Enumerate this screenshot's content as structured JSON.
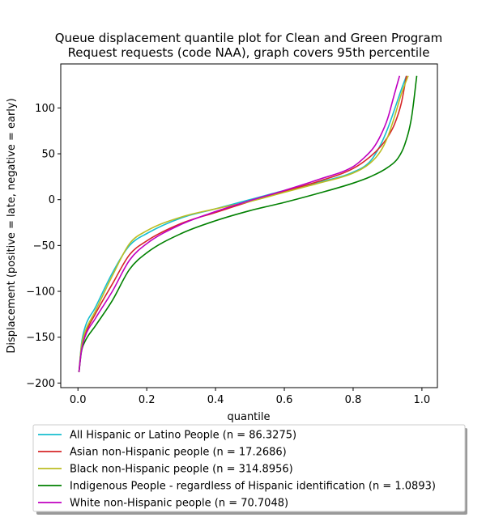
{
  "chart_data": {
    "type": "line",
    "title_lines": [
      "Queue displacement quantile plot for Clean and Green Program",
      "Request  requests (code NAA), graph covers 95th percentile"
    ],
    "xlabel": "quantile",
    "ylabel": "Displacement (positive = late, negative = early)",
    "xlim": [
      -0.05,
      1.045
    ],
    "ylim": [
      -205,
      148
    ],
    "xticks": [
      0.0,
      0.2,
      0.4,
      0.6,
      0.8,
      1.0
    ],
    "xtick_labels": [
      "0.0",
      "0.2",
      "0.4",
      "0.6",
      "0.8",
      "1.0"
    ],
    "yticks": [
      -200,
      -150,
      -100,
      -50,
      0,
      50,
      100
    ],
    "ytick_labels": [
      "−200",
      "−150",
      "−100",
      "−50",
      "0",
      "50",
      "100"
    ],
    "grid": false,
    "legend_position": "below",
    "series": [
      {
        "name": "All Hispanic or Latino People (n = 86.3275)",
        "color": "#17becf",
        "x": [
          0.003,
          0.01,
          0.02,
          0.05,
          0.1,
          0.15,
          0.2,
          0.3,
          0.4,
          0.5,
          0.6,
          0.7,
          0.8,
          0.85,
          0.88,
          0.9,
          0.92,
          0.94,
          0.955
        ],
        "y": [
          -188,
          -158,
          -140,
          -118,
          -80,
          -50,
          -37,
          -20,
          -10,
          0,
          10,
          19,
          30,
          42,
          60,
          77,
          98,
          120,
          135
        ]
      },
      {
        "name": "Asian non-Hispanic people (n = 17.2686)",
        "color": "#d62728",
        "x": [
          0.003,
          0.01,
          0.02,
          0.05,
          0.1,
          0.15,
          0.2,
          0.3,
          0.4,
          0.5,
          0.6,
          0.7,
          0.8,
          0.85,
          0.88,
          0.9,
          0.92,
          0.94,
          0.955
        ],
        "y": [
          -188,
          -163,
          -148,
          -125,
          -92,
          -60,
          -45,
          -26,
          -14,
          -2,
          9,
          20,
          34,
          47,
          58,
          68,
          82,
          105,
          135
        ]
      },
      {
        "name": "Black non-Hispanic people (n = 314.8956)",
        "color": "#bcbd22",
        "x": [
          0.003,
          0.01,
          0.02,
          0.05,
          0.1,
          0.15,
          0.2,
          0.3,
          0.4,
          0.5,
          0.6,
          0.7,
          0.8,
          0.85,
          0.88,
          0.9,
          0.92,
          0.94,
          0.96
        ],
        "y": [
          -188,
          -160,
          -145,
          -122,
          -83,
          -48,
          -34,
          -19,
          -10,
          -2,
          8,
          18,
          29,
          40,
          53,
          68,
          90,
          115,
          135
        ]
      },
      {
        "name": "Indigenous People - regardless of Hispanic identification (n = 1.0893)",
        "color": "#008000",
        "x": [
          0.003,
          0.01,
          0.02,
          0.05,
          0.1,
          0.15,
          0.2,
          0.3,
          0.4,
          0.5,
          0.6,
          0.7,
          0.8,
          0.85,
          0.9,
          0.93,
          0.95,
          0.97,
          0.985
        ],
        "y": [
          -188,
          -166,
          -155,
          -138,
          -110,
          -76,
          -58,
          -37,
          -23,
          -12,
          -3,
          7,
          18,
          25,
          35,
          45,
          60,
          90,
          135
        ]
      },
      {
        "name": "White non-Hispanic people (n = 70.7048)",
        "color": "#c000c0",
        "x": [
          0.003,
          0.01,
          0.02,
          0.05,
          0.1,
          0.15,
          0.2,
          0.3,
          0.4,
          0.5,
          0.6,
          0.7,
          0.8,
          0.83,
          0.86,
          0.88,
          0.9,
          0.92,
          0.935
        ],
        "y": [
          -188,
          -165,
          -150,
          -130,
          -100,
          -66,
          -48,
          -27,
          -13,
          -1,
          10,
          22,
          36,
          45,
          57,
          70,
          88,
          115,
          135
        ]
      }
    ]
  }
}
